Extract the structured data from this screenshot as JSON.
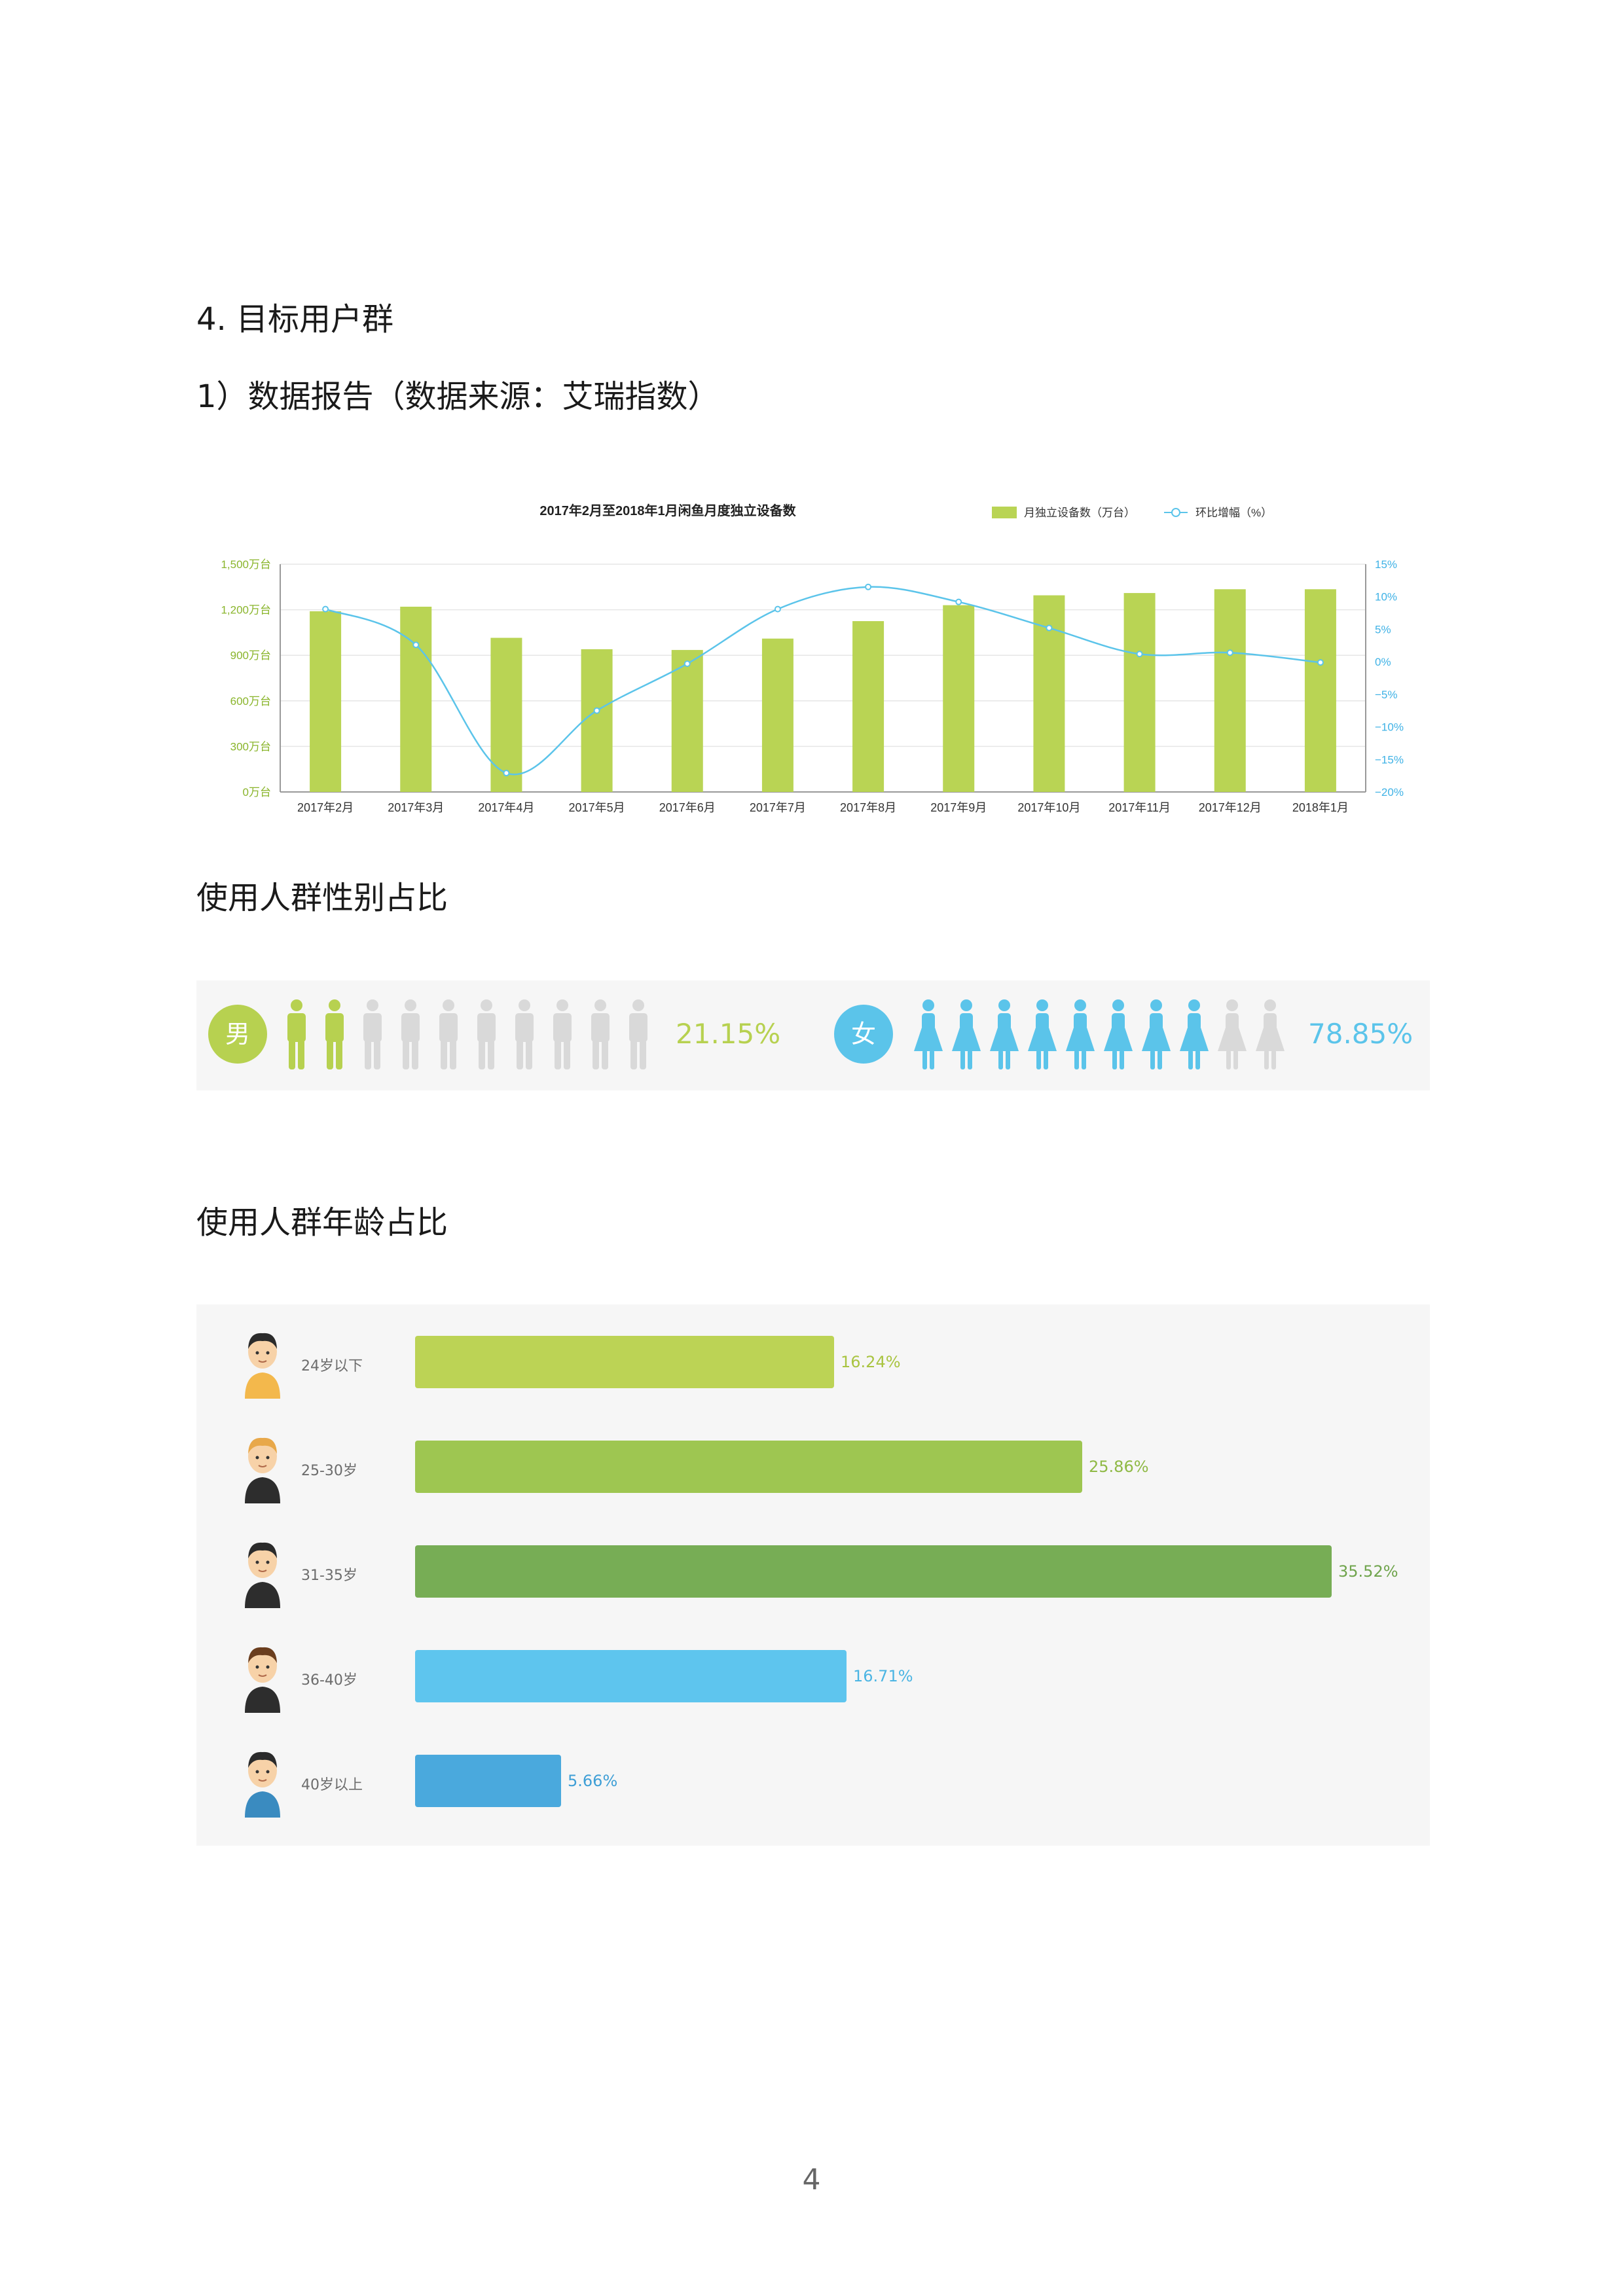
{
  "headings": {
    "section": "4.  目标用户群",
    "report": "1）数据报告（数据来源：艾瑞指数）",
    "gender": "使用人群性别占比",
    "age": "使用人群年龄占比"
  },
  "colors": {
    "bar": "#b9d454",
    "line": "#5bc4ea",
    "male": "#b7d150",
    "female": "#5bc4ea",
    "inactive": "#d9d9d9"
  },
  "chart_data": {
    "type": "bar",
    "title": "2017年2月至2018年1月闲鱼月度独立设备数",
    "categories": [
      "2017年2月",
      "2017年3月",
      "2017年4月",
      "2017年5月",
      "2017年6月",
      "2017年7月",
      "2017年8月",
      "2017年9月",
      "2017年10月",
      "2017年11月",
      "2017年12月",
      "2018年1月"
    ],
    "series": [
      {
        "name": "月独立设备数（万台）",
        "type": "bar",
        "axis": "left",
        "values": [
          1190,
          1220,
          1015,
          940,
          935,
          1010,
          1125,
          1230,
          1295,
          1310,
          1335,
          1335
        ]
      },
      {
        "name": "环比增幅（%）",
        "type": "line",
        "axis": "right",
        "values": [
          8.1,
          2.6,
          -17.1,
          -7.5,
          -0.3,
          8.1,
          11.5,
          9.2,
          5.2,
          1.2,
          1.4,
          -0.1
        ]
      }
    ],
    "ylim": [
      0,
      1500
    ],
    "y_ticks": [
      "0万台",
      "300万台",
      "600万台",
      "900万台",
      "1,200万台",
      "1,500万台"
    ],
    "y2lim": [
      -20,
      15
    ],
    "y2_ticks": [
      "15%",
      "10%",
      "5%",
      "0%",
      "-5%",
      "-10%",
      "-15%",
      "-20%"
    ],
    "grid": true,
    "legend": "top-right"
  },
  "gender": {
    "male": {
      "label": "男",
      "percent": "21.15%",
      "active_icons": 2,
      "total_icons": 10
    },
    "female": {
      "label": "女",
      "percent": "78.85%",
      "active_icons": 8,
      "total_icons": 10
    }
  },
  "age": {
    "groups": [
      {
        "label": "24岁以下",
        "value": 16.24,
        "display": "16.24%",
        "color": "#bcd355",
        "value_color": "#a9c441"
      },
      {
        "label": "25-30岁",
        "value": 25.86,
        "display": "25.86%",
        "color": "#9ec651",
        "value_color": "#8fb945"
      },
      {
        "label": "31-35岁",
        "value": 35.52,
        "display": "35.52%",
        "color": "#77ad55",
        "value_color": "#6fa44c"
      },
      {
        "label": "36-40岁",
        "value": 16.71,
        "display": "16.71%",
        "color": "#5ec5ee",
        "value_color": "#4cb5e3"
      },
      {
        "label": "40岁以上",
        "value": 5.66,
        "display": "5.66%",
        "color": "#4aa9dd",
        "value_color": "#3f9fd6"
      }
    ]
  },
  "page_number": "4"
}
